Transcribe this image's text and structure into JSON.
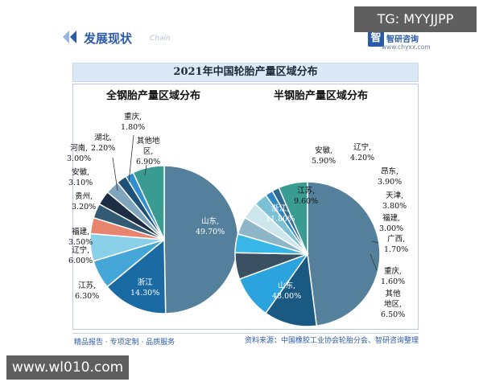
{
  "header": {
    "title": "发展现状",
    "subtitle": "Chain",
    "logo_name": "智研咨询",
    "logo_mark": "智",
    "logo_url": "www.chyxx.com"
  },
  "overlays": {
    "tg": "TG: MYYJJPP",
    "site": "www.wl010.com"
  },
  "footer": {
    "left": "精品报告 · 专项定制 · 品质服务",
    "source": "资料来源：中国橡胶工业协会轮胎分会、智研咨询整理"
  },
  "chart_data": [
    {
      "type": "pie",
      "title": "2021年中国轮胎产量区域分布",
      "subtitle": "全钢胎产量区域分布",
      "labels": [
        "山东",
        "浙江",
        "江苏",
        "辽宁",
        "福建",
        "贵州",
        "安徽",
        "河南",
        "湖北",
        "重庆",
        "其他地区"
      ],
      "label_texts": [
        "山东,",
        "浙江",
        "江苏,",
        "辽宁,",
        "福建,",
        "贵州,",
        "安徽,",
        "河南,",
        "湖北,",
        "重庆,",
        "其他地\n区,"
      ],
      "value_texts": [
        "49.70%",
        "14.30%",
        "6.30%",
        "6.00%",
        "3.50%",
        "3.20%",
        "3.10%",
        "3.00%",
        "2.20%",
        "1.80%",
        "6.90%"
      ],
      "values": [
        49.7,
        14.3,
        6.3,
        6.0,
        3.5,
        3.2,
        3.1,
        3.0,
        2.2,
        1.8,
        6.9
      ],
      "colors": [
        "#55809b",
        "#1a6aa3",
        "#45a6d8",
        "#89cfe8",
        "#e8836d",
        "#335a74",
        "#1d2e44",
        "#7fa6bc",
        "#1f5079",
        "#2f8fd0",
        "#3a9b93"
      ]
    },
    {
      "type": "pie",
      "subtitle": "半钢胎产量区域分布",
      "labels": [
        "山东",
        "浙江",
        "江苏",
        "安徽",
        "辽宁",
        "昂东",
        "天津",
        "福建",
        "广西",
        "重庆",
        "其他地区"
      ],
      "label_texts": [
        "山东,",
        "浙江,",
        "江苏,",
        "安徽,",
        "辽宁,",
        "昂东,",
        "天津,",
        "福建,",
        "广西,",
        "重庆,",
        "其他\n地区,"
      ],
      "value_texts": [
        "48.00%",
        "11.80%",
        "9.60%",
        "5.90%",
        "4.20%",
        "3.90%",
        "3.80%",
        "3.00%",
        "1.70%",
        "1.60%",
        "6.50%"
      ],
      "values": [
        48.0,
        11.8,
        9.6,
        5.9,
        4.2,
        3.9,
        3.8,
        3.0,
        1.7,
        1.6,
        6.5
      ],
      "colors": [
        "#55809b",
        "#1a5a82",
        "#2ba3de",
        "#3a5062",
        "#38b6e8",
        "#8fb6c8",
        "#cde6ee",
        "#7cc0d4",
        "#2f86c4",
        "#2e6a8f",
        "#3a9b93"
      ]
    }
  ]
}
